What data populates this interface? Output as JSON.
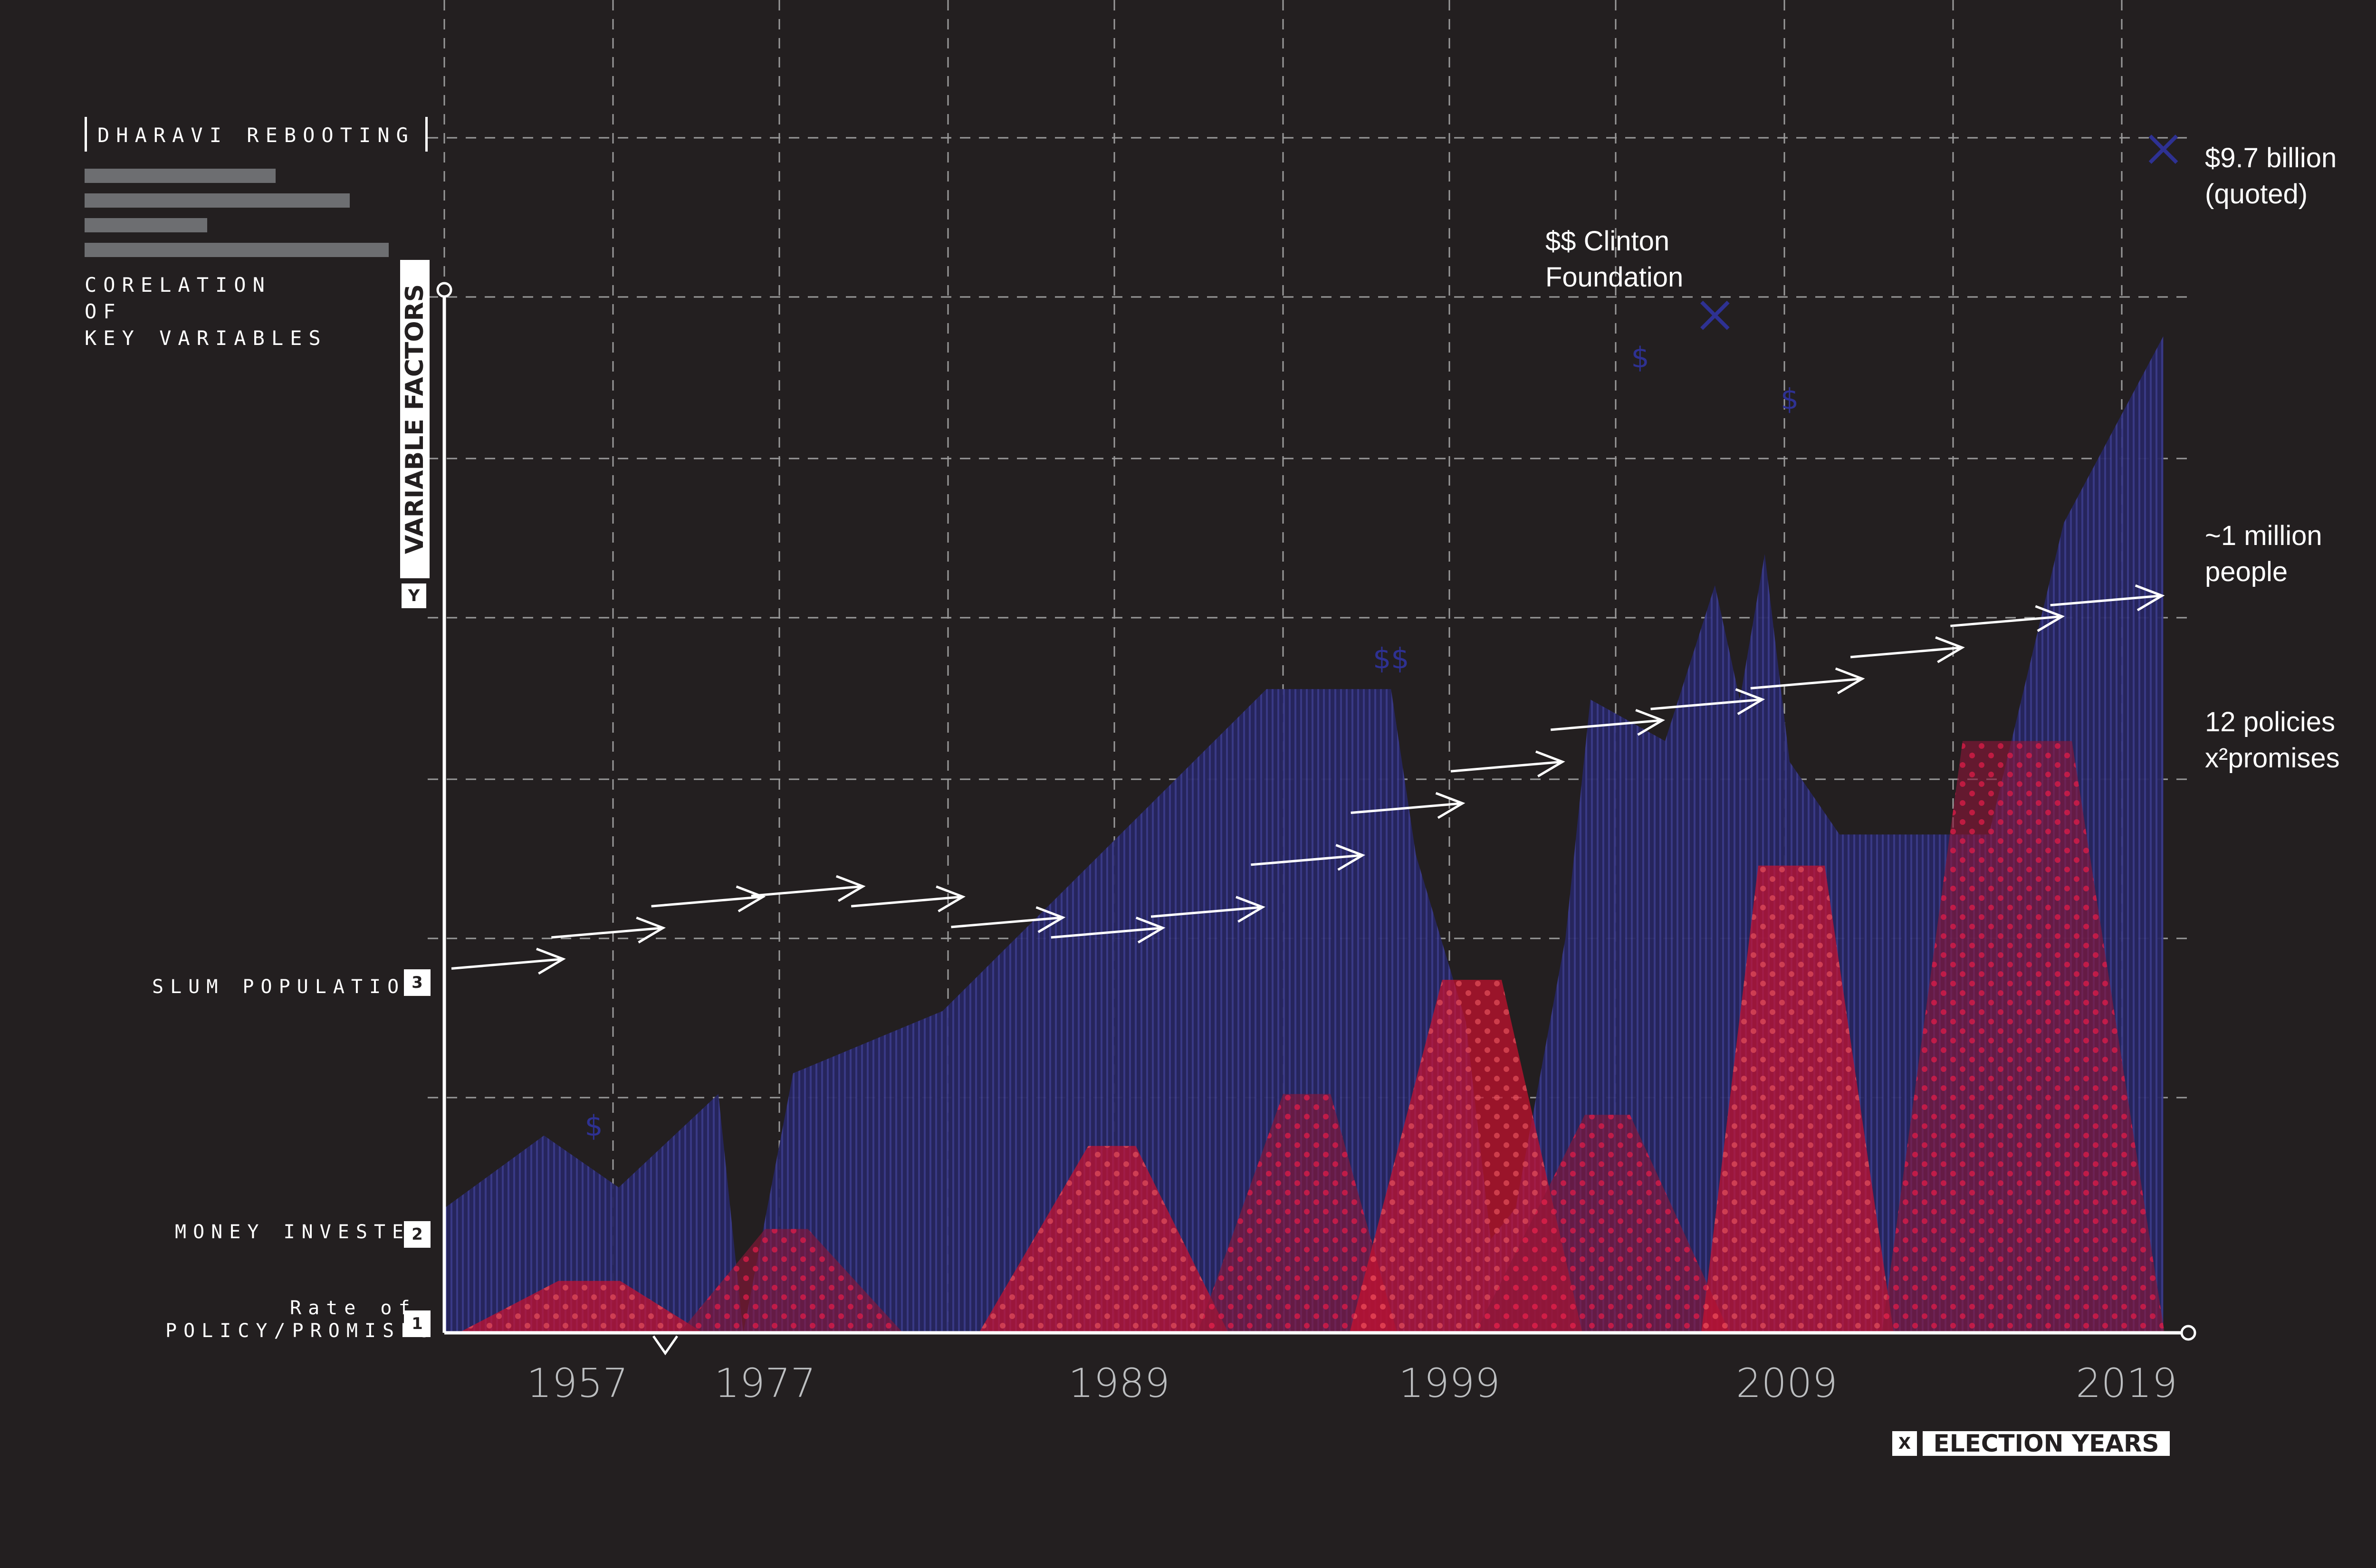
{
  "header": {
    "title": "DHARAVI REBOOTING",
    "subtitle_lines": [
      "CORELATION",
      "OF",
      "KEY VARIABLES"
    ]
  },
  "axes": {
    "y_tag": "Y",
    "y_label": "VARIABLE FACTORS",
    "x_tag": "X",
    "x_label": "ELECTION YEARS"
  },
  "legend": {
    "items": [
      {
        "number": "3",
        "label": "SLUM POPULATION"
      },
      {
        "number": "2",
        "label": "MONEY INVESTED"
      },
      {
        "number": "1",
        "label_lines": [
          "Rate of",
          "POLICY/PROMISES"
        ]
      }
    ]
  },
  "annotations": {
    "right_top": "$9.7 billion\n(quoted)",
    "clinton": "$$ Clinton\nFoundation",
    "population": "~1 million\npeople",
    "policies": "12 policies\nx²promises",
    "dollar_marks": [
      "$",
      "$$",
      "$",
      "$"
    ]
  },
  "colors": {
    "background": "#231f20",
    "money": "#2b2a6b",
    "money_stripe": "#3a3a8a",
    "policy": "#c8102e",
    "policy_dark": "#8a1538",
    "grid": "#9a9a9a",
    "arrow": "#ffffff",
    "marker": "#2e3192"
  },
  "chart_data": {
    "type": "area",
    "x_ticks": [
      "1957",
      "1977",
      "1989",
      "1999",
      "2009",
      "2019"
    ],
    "y_scale": "relative (unlabeled)",
    "grid": true,
    "series": [
      {
        "name": "MONEY INVESTED",
        "shape": "area",
        "x": [
          1950,
          1954,
          1957,
          1961,
          1962,
          1964,
          1970,
          1983,
          1988,
          1989,
          1991,
          1992,
          1993,
          1995,
          1996,
          1999,
          2001,
          2002,
          2003,
          2004,
          2006,
          2009,
          2012,
          2015,
          2019
        ],
        "y": [
          0.12,
          0.19,
          0.14,
          0.23,
          0.0,
          0.25,
          0.31,
          0.62,
          0.62,
          0.46,
          0.3,
          0.09,
          0.12,
          0.38,
          0.61,
          0.57,
          0.72,
          0.61,
          0.75,
          0.55,
          0.48,
          0.48,
          0.48,
          0.78,
          0.96
        ]
      },
      {
        "name": "Rate of POLICY/PROMISES",
        "shape": "trapezoids",
        "peaks": [
          0.05,
          0.1,
          0.18,
          0.23,
          0.34,
          0.21,
          0.45,
          0.57
        ]
      },
      {
        "name": "SLUM POPULATION",
        "shape": "arrows",
        "y": [
          0.36,
          0.39,
          0.42,
          0.43,
          0.42,
          0.4,
          0.39,
          0.41,
          0.46,
          0.51,
          0.55,
          0.59,
          0.61,
          0.63,
          0.66,
          0.69,
          0.71
        ]
      }
    ],
    "markers": [
      {
        "label": "$",
        "x": 1956,
        "y": 0.19
      },
      {
        "label": "$$",
        "x": 1988,
        "y": 0.64
      },
      {
        "label": "$",
        "x": 1998,
        "y": 0.93
      },
      {
        "label": "$",
        "x": 2004,
        "y": 0.89
      },
      {
        "label": "x",
        "x": 2001,
        "y": 0.98
      },
      {
        "label": "x",
        "x": 2019,
        "y": 1.14
      }
    ]
  }
}
